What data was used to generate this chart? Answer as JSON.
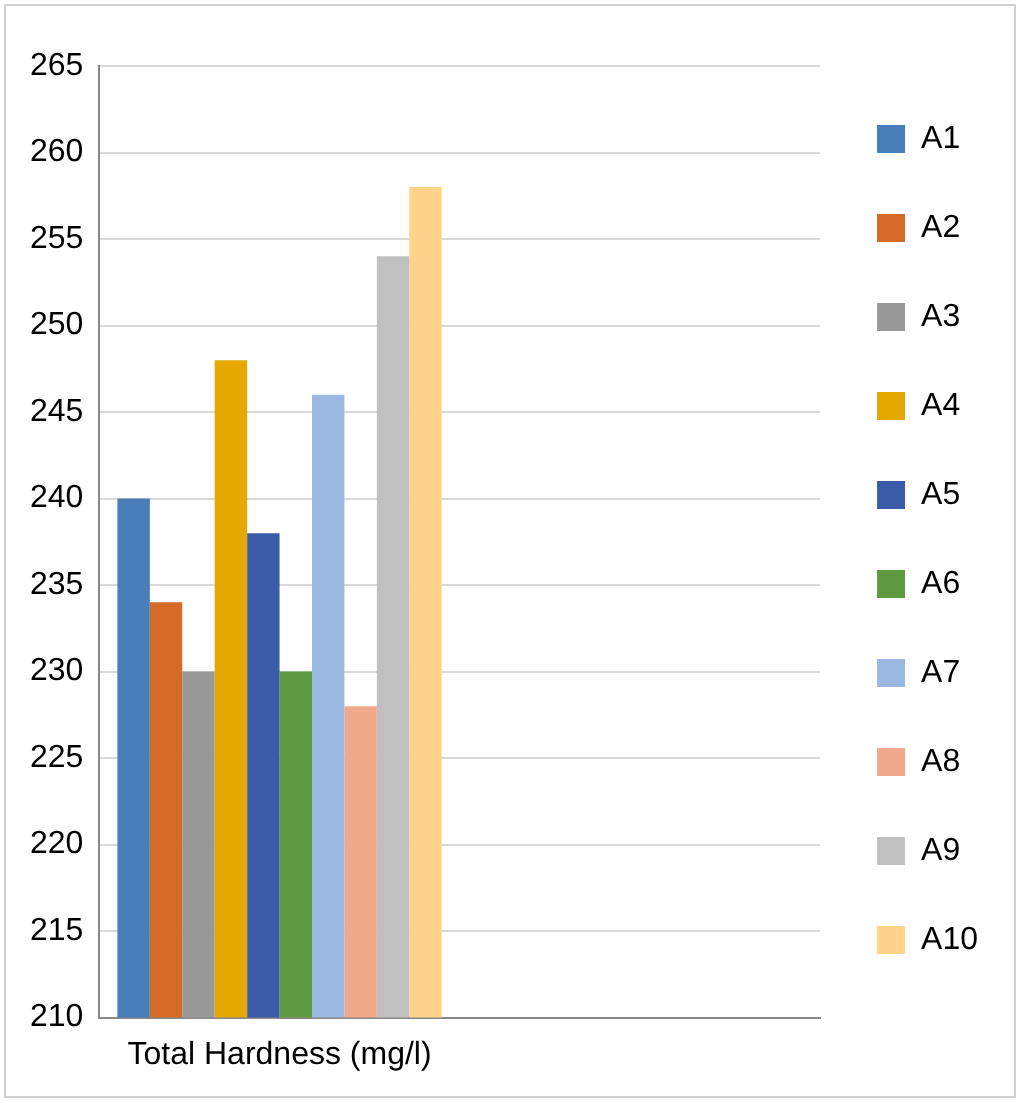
{
  "chart_data": {
    "type": "bar",
    "categories": [
      "Total Hardness (mg/l)",
      null
    ],
    "series": [
      {
        "name": "A1",
        "color": "#4a7ebb",
        "values": [
          240,
          null
        ]
      },
      {
        "name": "A2",
        "color": "#d46b28",
        "values": [
          234,
          null
        ]
      },
      {
        "name": "A3",
        "color": "#999999",
        "values": [
          230,
          null
        ]
      },
      {
        "name": "A4",
        "color": "#e5a800",
        "values": [
          248,
          null
        ]
      },
      {
        "name": "A5",
        "color": "#3a5ca8",
        "values": [
          238,
          null
        ]
      },
      {
        "name": "A6",
        "color": "#5e9a3f",
        "values": [
          230,
          null
        ]
      },
      {
        "name": "A7",
        "color": "#9ab8e0",
        "values": [
          246,
          null
        ]
      },
      {
        "name": "A8",
        "color": "#f2a88a",
        "values": [
          228,
          null
        ]
      },
      {
        "name": "A9",
        "color": "#c0c0c0",
        "values": [
          254,
          null
        ]
      },
      {
        "name": "A10",
        "color": "#ffd38a",
        "values": [
          258,
          null
        ]
      }
    ],
    "ylim": [
      210,
      265
    ],
    "yticks": [
      210,
      215,
      220,
      225,
      230,
      235,
      240,
      245,
      250,
      255,
      260,
      265
    ],
    "grid": "y",
    "legend": "right"
  }
}
